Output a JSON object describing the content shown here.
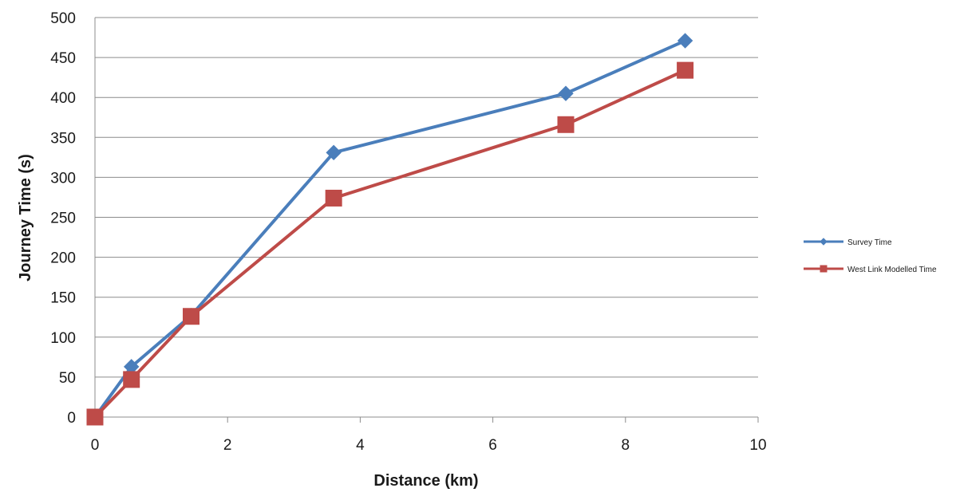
{
  "chart_data": {
    "type": "line",
    "title": "",
    "xlabel": "Distance (km)",
    "ylabel": "Journey Time (s)",
    "xlim": [
      0,
      10
    ],
    "ylim": [
      0,
      500
    ],
    "x_ticks": [
      0,
      2,
      4,
      6,
      8,
      10
    ],
    "y_ticks": [
      0,
      50,
      100,
      150,
      200,
      250,
      300,
      350,
      400,
      450,
      500
    ],
    "grid": "horizontal",
    "legend_position": "right",
    "series": [
      {
        "name": "Survey Time",
        "color": "#4a7ebb",
        "marker": "diamond",
        "x": [
          0,
          0.55,
          1.45,
          3.6,
          7.1,
          8.9
        ],
        "y": [
          0,
          63,
          127,
          331,
          405,
          471
        ]
      },
      {
        "name": "West Link  Modelled  Time",
        "color": "#be4b48",
        "marker": "square",
        "x": [
          0,
          0.55,
          1.45,
          3.6,
          7.1,
          8.9
        ],
        "y": [
          0,
          47,
          126,
          274,
          366,
          434
        ]
      }
    ]
  }
}
